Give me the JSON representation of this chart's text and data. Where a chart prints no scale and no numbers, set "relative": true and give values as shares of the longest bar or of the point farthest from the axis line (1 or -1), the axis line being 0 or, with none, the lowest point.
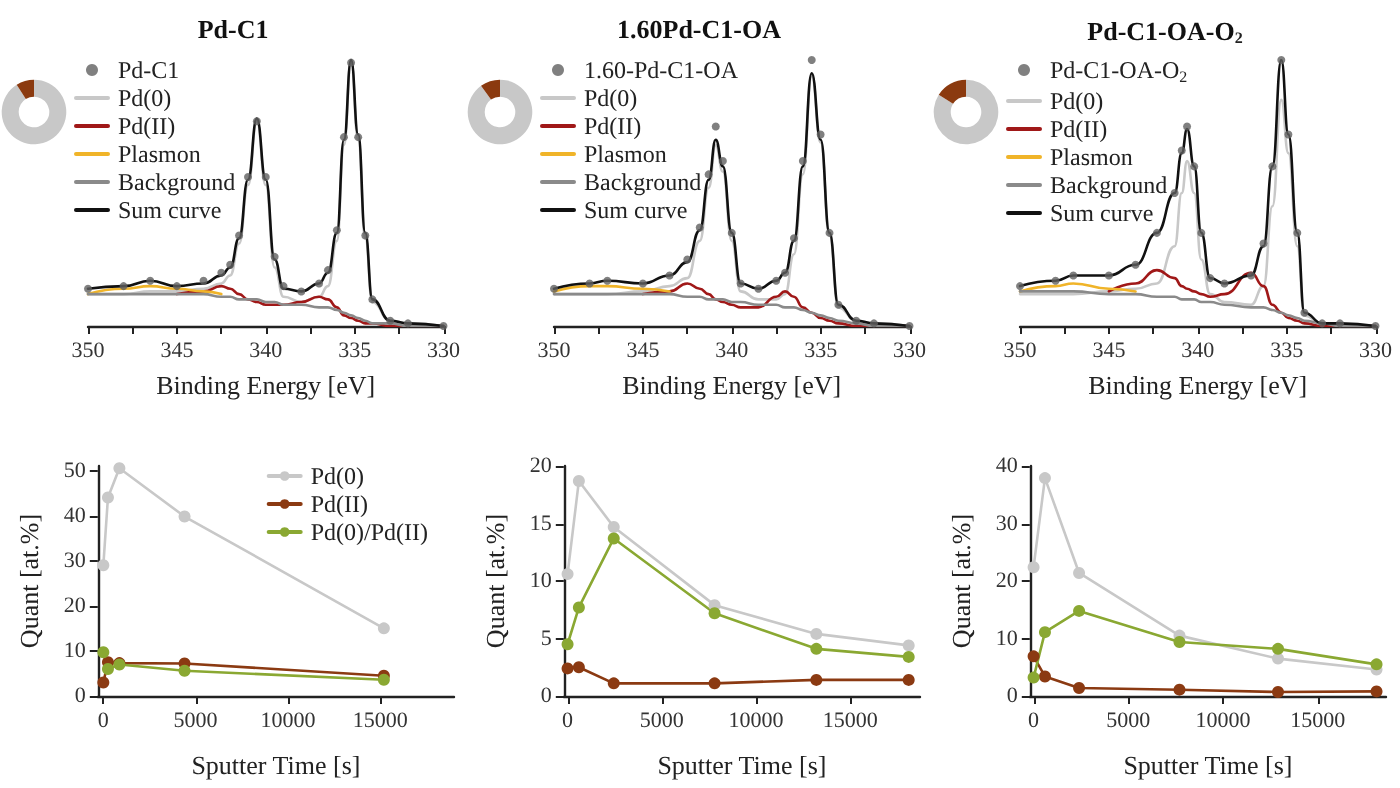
{
  "chart_data": [
    {
      "type": "line",
      "title": "Pd-C1",
      "xlabel": "Binding Energy [eV]",
      "relative": true,
      "legend": "top left",
      "xlim": [
        350,
        330
      ],
      "xticks": [
        350,
        {
          "value": 347.5,
          "label": null
        },
        345,
        {
          "value": 342.5,
          "label": null
        },
        340,
        {
          "value": 337.5,
          "label": null
        },
        335,
        {
          "value": 332.5,
          "label": null
        },
        330
      ],
      "x": [
        350,
        348,
        346.5,
        345,
        343.5,
        342.5,
        342,
        341.5,
        341,
        340.5,
        340,
        339.5,
        339,
        338,
        337,
        336.5,
        336,
        335.6,
        335.2,
        334.8,
        334.4,
        334,
        333,
        332,
        330
      ],
      "series": [
        {
          "name": "Pd-C1",
          "type": "scatter",
          "color": "#606060",
          "values": [
            0.14,
            0.15,
            0.17,
            0.15,
            0.17,
            0.2,
            0.23,
            0.34,
            0.56,
            0.77,
            0.56,
            0.26,
            0.15,
            0.13,
            0.16,
            0.21,
            0.36,
            0.71,
            0.99,
            0.71,
            0.34,
            0.1,
            0.02,
            0.01,
            0
          ]
        },
        {
          "name": "Pd(0)",
          "color": "#c8c8c8",
          "values": [
            0.12,
            0.12,
            0.13,
            0.13,
            0.14,
            0.16,
            0.19,
            0.31,
            0.53,
            0.77,
            0.53,
            0.22,
            0.11,
            0.09,
            0.11,
            0.15,
            0.32,
            0.68,
            0.99,
            0.7,
            0.33,
            0.09,
            0.02,
            0.01,
            0
          ]
        },
        {
          "name": "Pd(II)",
          "color": "#a01818",
          "values": [
            null,
            null,
            null,
            0.12,
            0.13,
            0.15,
            0.14,
            0.12,
            0.1,
            0.09,
            0.08,
            0.08,
            0.08,
            0.09,
            0.11,
            0.1,
            0.07,
            0.04,
            0.03,
            0.02,
            0.01,
            0.01,
            0,
            0,
            0
          ]
        },
        {
          "name": "Plasmon",
          "color": "#f0b429",
          "values": [
            0.12,
            0.14,
            0.15,
            0.14,
            0.13,
            0.12,
            null,
            null,
            null,
            null,
            null,
            null,
            null,
            null,
            null,
            null,
            null,
            null,
            null,
            null,
            null,
            null,
            null,
            null,
            null
          ]
        },
        {
          "name": "Background",
          "color": "#8a8a8a",
          "values": [
            0.12,
            0.12,
            0.12,
            0.12,
            0.12,
            0.11,
            0.11,
            0.1,
            0.1,
            0.1,
            0.09,
            0.09,
            0.08,
            0.08,
            0.07,
            0.07,
            0.06,
            0.05,
            0.04,
            0.03,
            0.02,
            0.01,
            0.01,
            0,
            0
          ]
        },
        {
          "name": "Sum curve",
          "color": "#111111",
          "values": [
            0.14,
            0.15,
            0.17,
            0.15,
            0.16,
            0.19,
            0.22,
            0.33,
            0.55,
            0.78,
            0.55,
            0.25,
            0.14,
            0.13,
            0.16,
            0.2,
            0.35,
            0.7,
            1.0,
            0.72,
            0.35,
            0.1,
            0.02,
            0.01,
            0
          ]
        }
      ]
    },
    {
      "type": "donut",
      "categories": [
        null,
        null
      ],
      "values": [
        91,
        9
      ],
      "colors": [
        "#c8c8c8",
        "#8b3a0f"
      ]
    },
    {
      "type": "line",
      "title": "1.60Pd-C1-OA",
      "xlabel": "Binding Energy [eV]",
      "relative": true,
      "legend": "top left",
      "xlim": [
        350,
        330
      ],
      "xticks": [
        350,
        {
          "value": 347.5,
          "label": null
        },
        345,
        {
          "value": 342.5,
          "label": null
        },
        340,
        {
          "value": 337.5,
          "label": null
        },
        335,
        {
          "value": 332.5,
          "label": null
        },
        330
      ],
      "x": [
        350,
        348,
        347,
        345,
        343.5,
        342.5,
        341.8,
        341.3,
        340.9,
        340.5,
        340,
        339.5,
        338.5,
        337.5,
        337,
        336.5,
        336,
        335.5,
        335,
        334.5,
        334,
        333,
        332,
        330
      ],
      "series": [
        {
          "name": "1.60-Pd-C1-OA",
          "type": "scatter",
          "color": "#606060",
          "values": [
            0.14,
            0.16,
            0.17,
            0.16,
            0.19,
            0.25,
            0.37,
            0.57,
            0.75,
            0.62,
            0.35,
            0.16,
            0.14,
            0.17,
            0.2,
            0.33,
            0.62,
            1.0,
            0.72,
            0.35,
            0.08,
            0.02,
            0.01,
            0
          ]
        },
        {
          "name": "Pd(0)",
          "color": "#c8c8c8",
          "values": [
            0.12,
            0.12,
            0.12,
            0.13,
            0.15,
            0.18,
            0.32,
            0.52,
            0.68,
            0.58,
            0.32,
            0.13,
            0.1,
            0.1,
            0.12,
            0.27,
            0.57,
            0.94,
            0.69,
            0.34,
            0.07,
            0.02,
            0.01,
            0
          ]
        },
        {
          "name": "Pd(II)",
          "color": "#a01818",
          "values": [
            null,
            null,
            null,
            0.12,
            0.13,
            0.16,
            0.14,
            0.12,
            0.1,
            0.09,
            0.08,
            0.07,
            0.07,
            0.11,
            0.13,
            0.11,
            0.07,
            0.05,
            0.03,
            0.02,
            0.01,
            0,
            0,
            0
          ]
        },
        {
          "name": "Plasmon",
          "color": "#f0b429",
          "values": [
            0.13,
            0.15,
            0.15,
            0.14,
            0.13,
            null,
            null,
            null,
            null,
            null,
            null,
            null,
            null,
            null,
            null,
            null,
            null,
            null,
            null,
            null,
            null,
            null,
            null,
            null
          ]
        },
        {
          "name": "Background",
          "color": "#8a8a8a",
          "values": [
            0.12,
            0.12,
            0.12,
            0.12,
            0.12,
            0.11,
            0.11,
            0.1,
            0.1,
            0.1,
            0.09,
            0.09,
            0.08,
            0.08,
            0.07,
            0.07,
            0.06,
            0.05,
            0.04,
            0.03,
            0.02,
            0.01,
            0,
            0
          ]
        },
        {
          "name": "Sum curve",
          "color": "#111111",
          "values": [
            0.14,
            0.16,
            0.17,
            0.16,
            0.19,
            0.24,
            0.36,
            0.55,
            0.7,
            0.6,
            0.35,
            0.16,
            0.14,
            0.17,
            0.2,
            0.32,
            0.6,
            0.95,
            0.7,
            0.35,
            0.08,
            0.02,
            0.01,
            0
          ]
        }
      ]
    },
    {
      "type": "donut",
      "categories": [
        null,
        null
      ],
      "values": [
        90,
        10
      ],
      "colors": [
        "#c8c8c8",
        "#8b3a0f"
      ]
    },
    {
      "type": "line",
      "title": "Pd-C1-OA-O$_{2}$",
      "xlabel": "Binding Energy [eV]",
      "relative": true,
      "legend": "top left",
      "xlim": [
        350,
        330
      ],
      "xticks": [
        350,
        {
          "value": 347.5,
          "label": null
        },
        345,
        {
          "value": 342.5,
          "label": null
        },
        340,
        {
          "value": 337.5,
          "label": null
        },
        335,
        {
          "value": 332.5,
          "label": null
        },
        330
      ],
      "x": [
        350,
        348,
        347,
        345,
        343.5,
        342.3,
        341.3,
        340.9,
        340.6,
        340.2,
        339.8,
        339.3,
        338.5,
        337,
        336.3,
        335.8,
        335.3,
        334.9,
        334.4,
        334,
        333,
        332,
        330
      ],
      "series": [
        {
          "name": "Pd-C1-OA-O$_{2}$",
          "type": "scatter",
          "color": "#606060",
          "values": [
            0.15,
            0.17,
            0.19,
            0.19,
            0.23,
            0.35,
            0.5,
            0.66,
            0.75,
            0.6,
            0.35,
            0.18,
            0.16,
            0.19,
            0.31,
            0.6,
            1.0,
            0.72,
            0.35,
            0.05,
            0.01,
            0.01,
            0
          ]
        },
        {
          "name": "Pd(0)",
          "color": "#c8c8c8",
          "values": [
            0.12,
            0.12,
            0.12,
            0.13,
            0.14,
            0.16,
            0.3,
            0.5,
            0.62,
            0.5,
            0.25,
            0.12,
            0.09,
            0.08,
            0.15,
            0.45,
            0.85,
            0.65,
            0.3,
            0.04,
            0.01,
            0,
            0
          ]
        },
        {
          "name": "Pd(II)",
          "color": "#a01818",
          "values": [
            null,
            null,
            null,
            0.13,
            0.16,
            0.21,
            0.18,
            0.15,
            0.14,
            0.13,
            0.12,
            0.11,
            0.12,
            0.2,
            0.15,
            0.08,
            0.05,
            0.03,
            0.02,
            0.01,
            0,
            0,
            0
          ]
        },
        {
          "name": "Plasmon",
          "color": "#f0b429",
          "values": [
            0.13,
            0.15,
            0.16,
            0.14,
            0.13,
            null,
            null,
            null,
            null,
            null,
            null,
            null,
            null,
            null,
            null,
            null,
            null,
            null,
            null,
            null,
            null,
            null,
            null
          ]
        },
        {
          "name": "Background",
          "color": "#8a8a8a",
          "values": [
            0.13,
            0.13,
            0.13,
            0.12,
            0.12,
            0.11,
            0.11,
            0.1,
            0.1,
            0.1,
            0.09,
            0.09,
            0.08,
            0.07,
            0.07,
            0.06,
            0.05,
            0.04,
            0.03,
            0.02,
            0.01,
            0,
            0
          ]
        },
        {
          "name": "Sum curve",
          "color": "#111111",
          "values": [
            0.15,
            0.17,
            0.19,
            0.19,
            0.23,
            0.35,
            0.5,
            0.65,
            0.74,
            0.6,
            0.35,
            0.18,
            0.16,
            0.19,
            0.3,
            0.6,
            1.0,
            0.72,
            0.35,
            0.05,
            0.01,
            0.01,
            0
          ]
        }
      ]
    },
    {
      "type": "donut",
      "categories": [
        null,
        null
      ],
      "values": [
        84,
        16
      ],
      "colors": [
        "#c8c8c8",
        "#8b3a0f"
      ]
    },
    {
      "type": "line",
      "xlabel": "Sputter Time [s]",
      "ylabel": "Quant [at.%]",
      "legend": "top right",
      "marker": "circle",
      "xlim": [
        -300,
        19000
      ],
      "xticks": [
        0,
        5000,
        10000,
        15000
      ],
      "ylim": [
        0,
        51
      ],
      "yticks": [
        0,
        10,
        20,
        30,
        40,
        50
      ],
      "x": [
        0,
        250,
        870,
        4400,
        15200
      ],
      "series": [
        {
          "name": "Pd(0)",
          "color": "#c8c8c8",
          "values": [
            29,
            44,
            50.5,
            39.8,
            15
          ]
        },
        {
          "name": "Pd(II)",
          "color": "#8b3a12",
          "values": [
            3,
            7.5,
            7.3,
            7.2,
            4.5
          ]
        },
        {
          "name": "Pd(0)/Pd(II)",
          "color": "#8aa832",
          "values": [
            9.7,
            6,
            7,
            5.6,
            3.6
          ]
        }
      ]
    },
    {
      "type": "line",
      "xlabel": "Sputter Time [s]",
      "ylabel": "Quant [at.%]",
      "marker": "circle",
      "xlim": [
        -200,
        18700
      ],
      "xticks": [
        0,
        5000,
        10000,
        15000
      ],
      "ylim": [
        0,
        20
      ],
      "yticks": [
        0,
        5,
        10,
        15,
        20
      ],
      "x": [
        0,
        600,
        2450,
        7800,
        13200,
        18100
      ],
      "series": [
        {
          "color": "#c8c8c8",
          "values": [
            10.6,
            18.7,
            14.7,
            7.9,
            5.4,
            4.4
          ]
        },
        {
          "color": "#8b3a12",
          "values": [
            2.4,
            2.5,
            1.1,
            1.1,
            1.4,
            1.4
          ]
        },
        {
          "color": "#8aa832",
          "values": [
            4.5,
            7.7,
            13.7,
            7.2,
            4.1,
            3.4
          ]
        }
      ]
    },
    {
      "type": "line",
      "xlabel": "Sputter Time [s]",
      "ylabel": "Quant [at.%]",
      "marker": "circle",
      "xlim": [
        -200,
        18600
      ],
      "xticks": [
        0,
        5000,
        10000,
        15000
      ],
      "ylim": [
        0,
        40
      ],
      "yticks": [
        0,
        10,
        20,
        30,
        40
      ],
      "x": [
        0,
        600,
        2400,
        7700,
        12900,
        18100
      ],
      "series": [
        {
          "color": "#c8c8c8",
          "values": [
            22.4,
            37.9,
            21.4,
            10.5,
            6.5,
            4.6
          ]
        },
        {
          "color": "#8b3a12",
          "values": [
            6.9,
            3.4,
            1.4,
            1.1,
            0.7,
            0.8
          ]
        },
        {
          "color": "#8aa832",
          "values": [
            3.2,
            11.1,
            14.8,
            9.4,
            8.2,
            5.5
          ]
        }
      ]
    }
  ]
}
